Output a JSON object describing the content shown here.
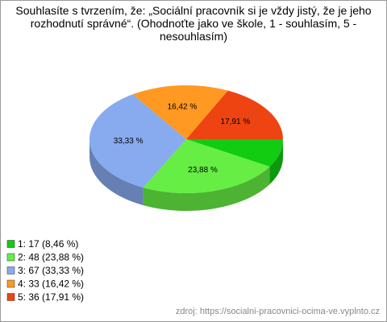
{
  "chart_data": {
    "type": "pie",
    "title": "Souhlasíte s tvrzením, že: „Sociální pracovník si je vždy jistý, že je jeho rozhodnutí správné“.  (Ohodnoťte jako ve škole, 1 - souhlasím, 5 - nesouhlasím)",
    "categories": [
      "1: 17 (8,46 %)",
      "2: 48 (23,88 %)",
      "3: 67 (33,33 %)",
      "4: 33 (16,42 %)",
      "5: 36 (17,91 %)"
    ],
    "values": [
      8.46,
      23.88,
      33.33,
      16.42,
      17.91
    ],
    "value_labels": [
      null,
      "23,88 %",
      "33,33 %",
      "16,42 %",
      "17,91 %"
    ],
    "colors": [
      "#11cc11",
      "#66ee44",
      "#88aaee",
      "#ff9922",
      "#ee4411"
    ],
    "legend": "bottom-left",
    "source": "zdroj: https://socialni-pracovnici-ocima-ve.vyplnto.cz"
  }
}
